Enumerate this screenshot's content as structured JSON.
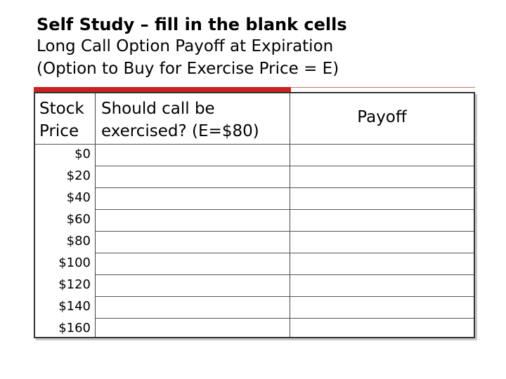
{
  "slide": {
    "title_bold": "Self Study – fill in the blank cells",
    "subtitle_line1": "Long Call Option Payoff at Expiration",
    "subtitle_line2": "(Option to Buy for Exercise Price = E)"
  },
  "table": {
    "header": {
      "stock_line1": "Stock",
      "stock_line2": "Price",
      "exercise_line1": "Should call be",
      "exercise_line2": "exercised? (E=$80)",
      "payoff": "Payoff"
    },
    "rows": [
      {
        "price": "$0",
        "exercised": "",
        "payoff": ""
      },
      {
        "price": "$20",
        "exercised": "",
        "payoff": ""
      },
      {
        "price": "$40",
        "exercised": "",
        "payoff": ""
      },
      {
        "price": "$60",
        "exercised": "",
        "payoff": ""
      },
      {
        "price": "$80",
        "exercised": "",
        "payoff": ""
      },
      {
        "price": "$100",
        "exercised": "",
        "payoff": ""
      },
      {
        "price": "$120",
        "exercised": "",
        "payoff": ""
      },
      {
        "price": "$140",
        "exercised": "",
        "payoff": ""
      },
      {
        "price": "$160",
        "exercised": "",
        "payoff": ""
      }
    ]
  },
  "colors": {
    "accent_rule": "#cc1f1f",
    "grid": "#444444"
  }
}
